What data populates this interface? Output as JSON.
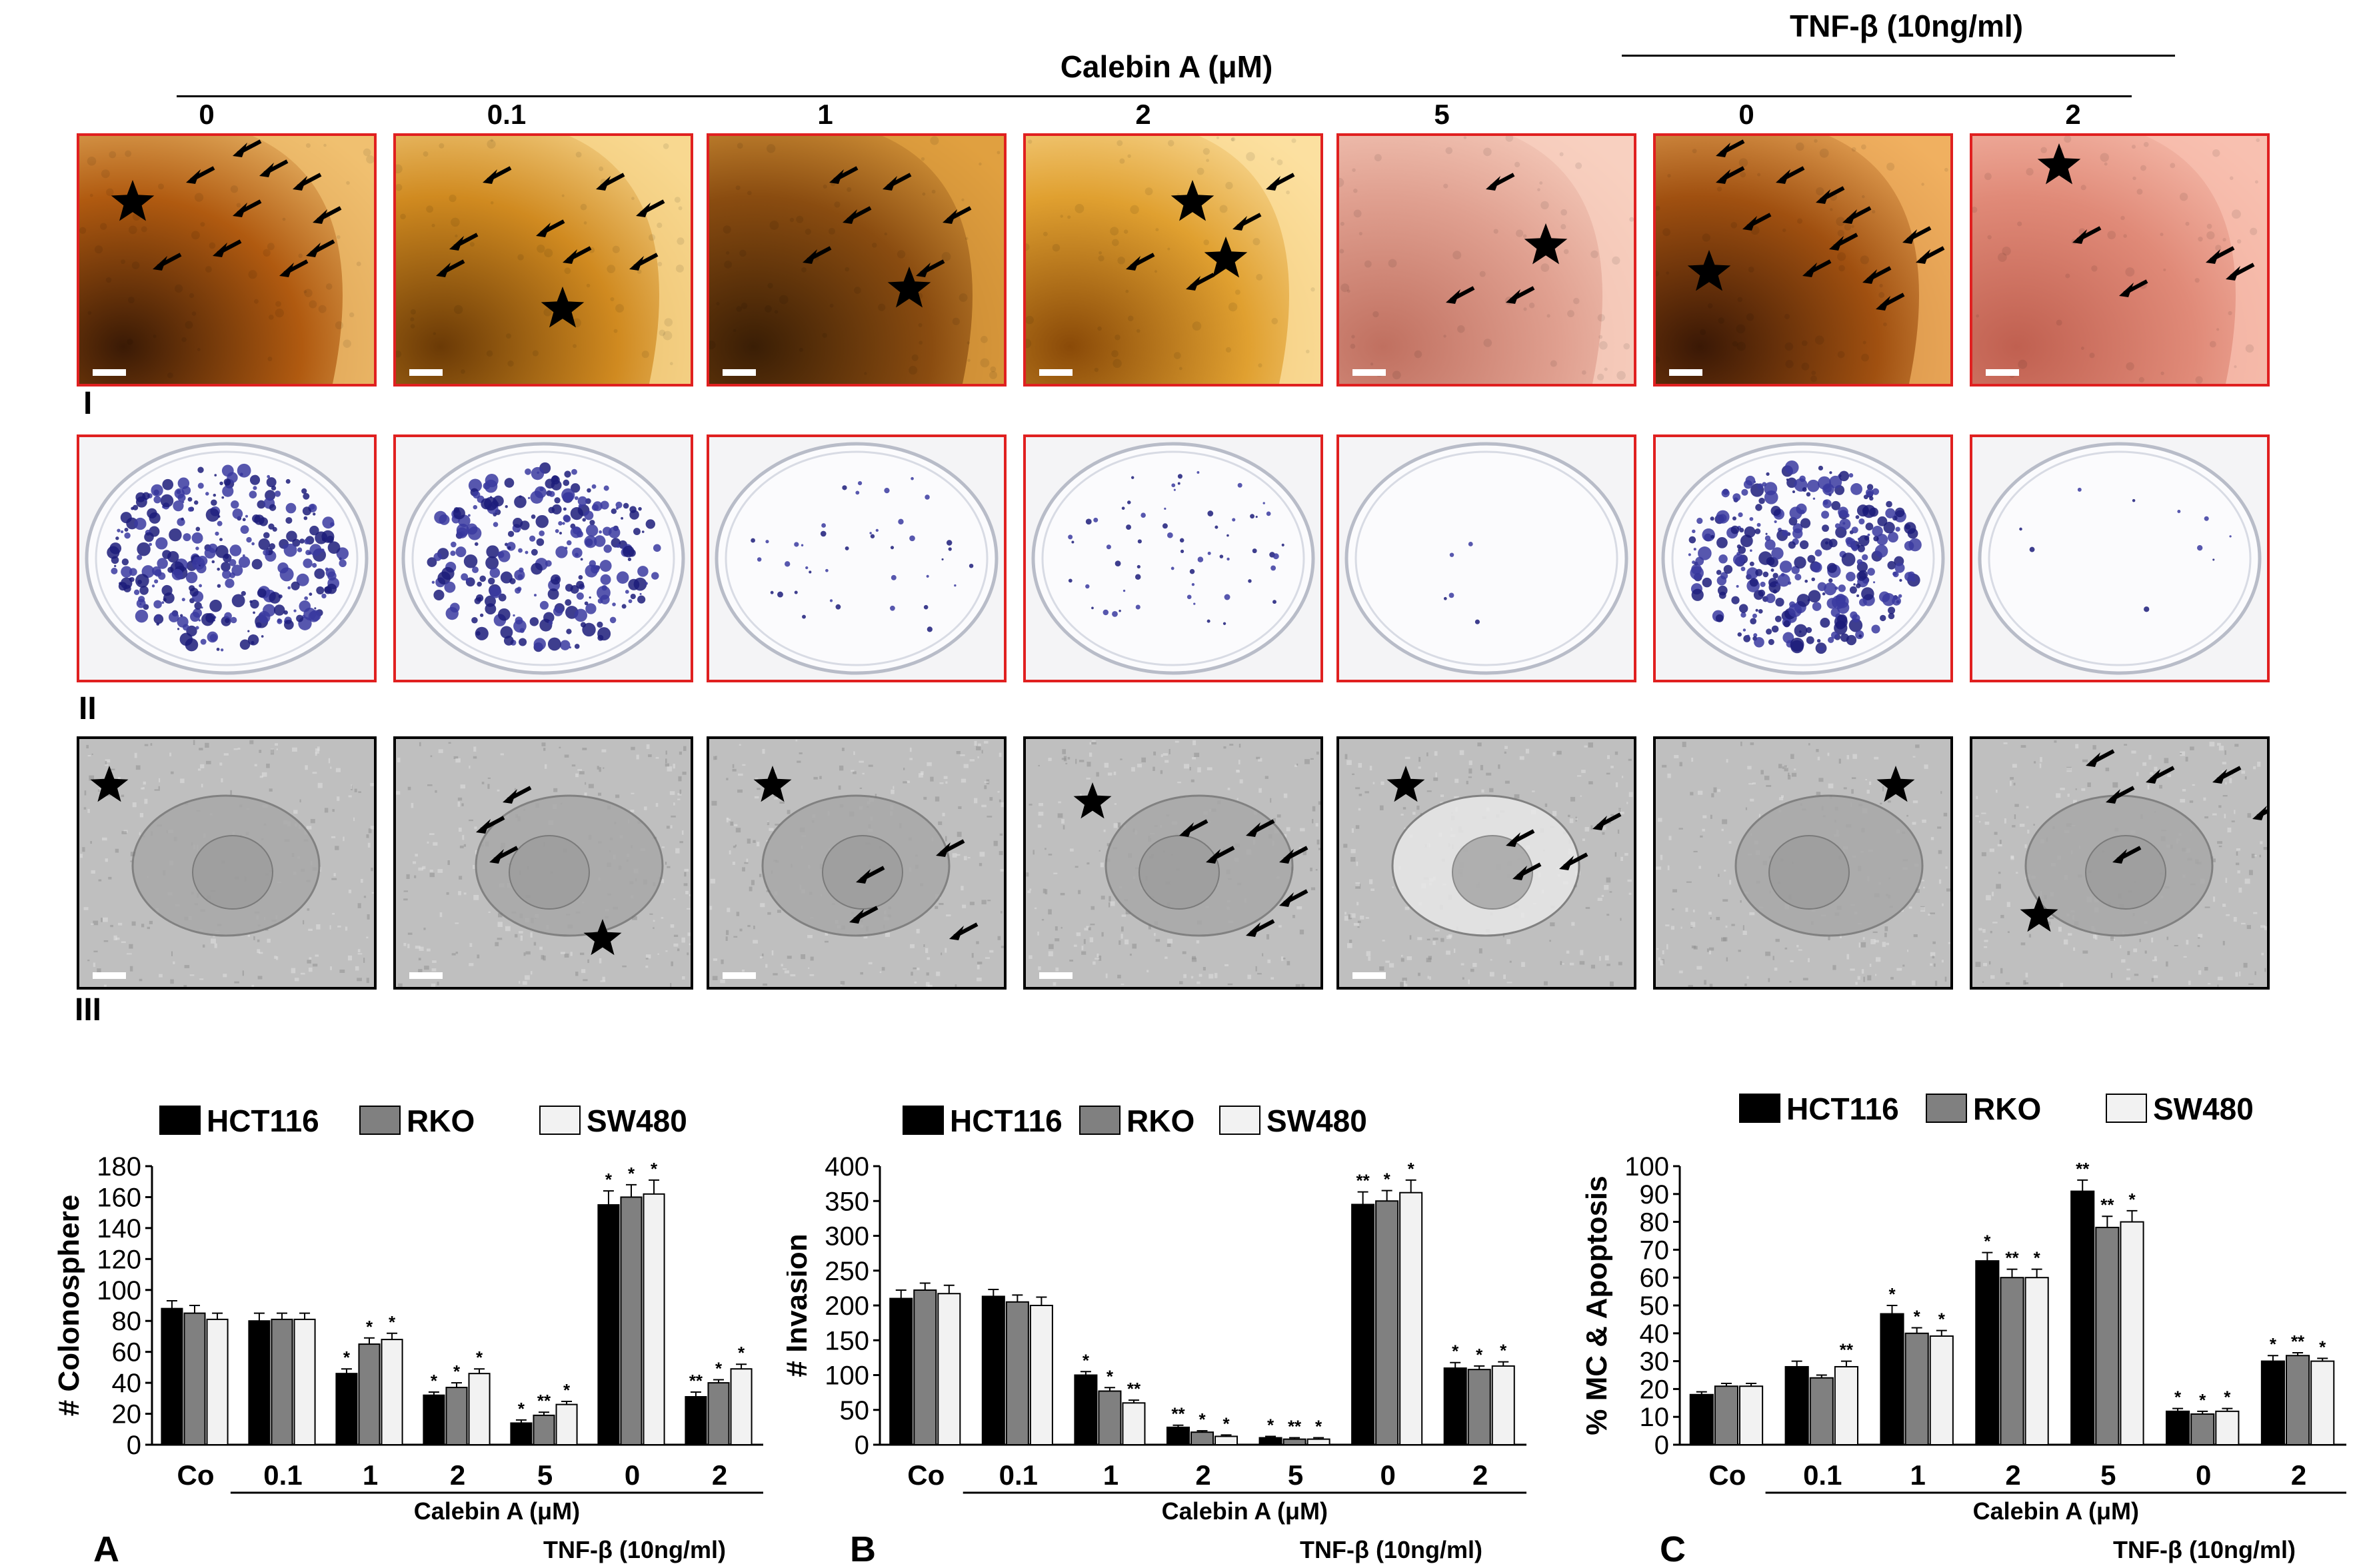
{
  "top": {
    "calebin_header": "Calebin A (μM)",
    "tnf_header": "TNF-β (10ng/ml)",
    "concentrations": [
      "0",
      "0.1",
      "1",
      "2",
      "5",
      "0",
      "2"
    ],
    "row_labels": [
      "I",
      "II",
      "III"
    ]
  },
  "colors": {
    "hct116": "#000000",
    "rko": "#808080",
    "sw480": "#f2f2f2",
    "row1_border": "#e02020",
    "row2_border": "#e02020",
    "row3_border": "#000000"
  },
  "chart_data": [
    {
      "type": "bar",
      "panel_letter": "A",
      "ylabel": "# Colonosphere",
      "ylim": [
        0,
        180
      ],
      "yticks": [
        0,
        20,
        40,
        60,
        80,
        100,
        120,
        140,
        160,
        180
      ],
      "categories": [
        "Co",
        "0.1",
        "1",
        "2",
        "5",
        "0",
        "2"
      ],
      "calebin_label": "Calebin A (μM)",
      "tnf_label": "TNF-β (10ng/ml)",
      "series": [
        {
          "name": "HCT116",
          "values": [
            88,
            80,
            46,
            32,
            14,
            155,
            31
          ],
          "errors": [
            5,
            5,
            3,
            2,
            2,
            9,
            3
          ],
          "sig": [
            "",
            "",
            "*",
            "*",
            "*",
            "*",
            "**"
          ]
        },
        {
          "name": "RKO",
          "values": [
            85,
            81,
            65,
            37,
            19,
            160,
            40
          ],
          "errors": [
            5,
            4,
            4,
            3,
            2,
            8,
            2
          ],
          "sig": [
            "",
            "",
            "*",
            "*",
            "**",
            "*",
            "*"
          ]
        },
        {
          "name": "SW480",
          "values": [
            81,
            81,
            68,
            46,
            26,
            162,
            49
          ],
          "errors": [
            4,
            4,
            4,
            3,
            2,
            9,
            3
          ],
          "sig": [
            "",
            "",
            "*",
            "*",
            "*",
            "*",
            "*"
          ]
        }
      ]
    },
    {
      "type": "bar",
      "panel_letter": "B",
      "ylabel": "# Invasion",
      "ylim": [
        0,
        400
      ],
      "yticks": [
        0,
        50,
        100,
        150,
        200,
        250,
        300,
        350,
        400
      ],
      "categories": [
        "Co",
        "0.1",
        "1",
        "2",
        "5",
        "0",
        "2"
      ],
      "calebin_label": "Calebin A (μM)",
      "tnf_label": "TNF-β (10ng/ml)",
      "series": [
        {
          "name": "HCT116",
          "values": [
            210,
            213,
            100,
            25,
            10,
            345,
            110
          ],
          "errors": [
            12,
            10,
            5,
            3,
            2,
            18,
            8
          ],
          "sig": [
            "",
            "",
            "*",
            "**",
            "*",
            "**",
            "*"
          ]
        },
        {
          "name": "RKO",
          "values": [
            222,
            205,
            77,
            18,
            8,
            350,
            108
          ],
          "errors": [
            10,
            10,
            5,
            2,
            2,
            15,
            5
          ],
          "sig": [
            "",
            "",
            "*",
            "*",
            "**",
            "*",
            "*"
          ]
        },
        {
          "name": "SW480",
          "values": [
            217,
            200,
            60,
            12,
            8,
            362,
            113
          ],
          "errors": [
            12,
            12,
            4,
            2,
            2,
            18,
            6
          ],
          "sig": [
            "",
            "",
            "**",
            "*",
            "*",
            "*",
            "*"
          ]
        }
      ]
    },
    {
      "type": "bar",
      "panel_letter": "C",
      "ylabel": "% MC & Apoptosis",
      "ylim": [
        0,
        100
      ],
      "yticks": [
        0,
        10,
        20,
        30,
        40,
        50,
        60,
        70,
        80,
        90,
        100
      ],
      "categories": [
        "Co",
        "0.1",
        "1",
        "2",
        "5",
        "0",
        "2"
      ],
      "calebin_label": "Calebin A (μM)",
      "tnf_label": "TNF-β (10ng/ml)",
      "series": [
        {
          "name": "HCT116",
          "values": [
            18,
            28,
            47,
            66,
            91,
            12,
            30
          ],
          "errors": [
            1,
            2,
            3,
            3,
            4,
            1,
            2
          ],
          "sig": [
            "",
            "",
            "*",
            "*",
            "**",
            "*",
            "*"
          ]
        },
        {
          "name": "RKO",
          "values": [
            21,
            24,
            40,
            60,
            78,
            11,
            32
          ],
          "errors": [
            1,
            1,
            2,
            3,
            4,
            1,
            1
          ],
          "sig": [
            "",
            "",
            "*",
            "**",
            "**",
            "*",
            "**"
          ]
        },
        {
          "name": "SW480",
          "values": [
            21,
            28,
            39,
            60,
            80,
            12,
            30
          ],
          "errors": [
            1,
            2,
            2,
            3,
            4,
            1,
            1
          ],
          "sig": [
            "",
            "**",
            "*",
            "*",
            "*",
            "*",
            "*"
          ]
        }
      ]
    }
  ]
}
